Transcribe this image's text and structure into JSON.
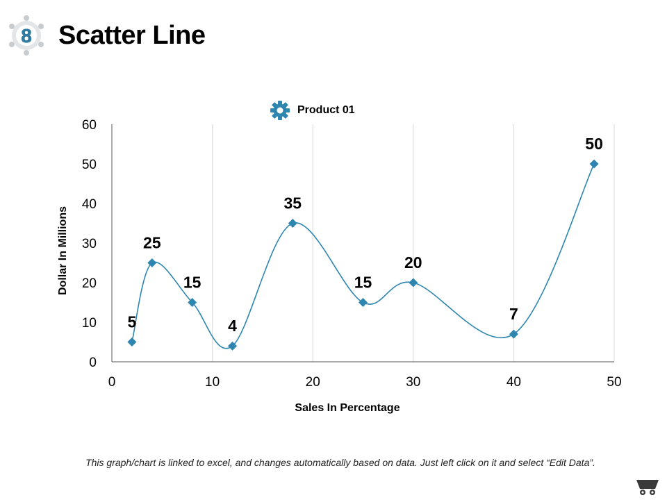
{
  "slide": {
    "number": "8",
    "title": "Scatter Line",
    "footnote": "This graph/chart is linked to excel, and changes automatically based on data. Just left click on it and select “Edit Data”."
  },
  "colors": {
    "series": "#2E86B0",
    "grid": "#D9D9D9",
    "axis": "#555555",
    "logo": "#2E7FA8",
    "logo_ring": "#C9CCCF"
  },
  "icons": {
    "logo": "gear-badge-icon",
    "legend": "gear-icon",
    "footer": "cart-icon"
  },
  "chart_data": {
    "type": "scatter",
    "smooth": true,
    "title": "",
    "xlabel": "Sales In Percentage",
    "ylabel": "Dollar In Millions",
    "xlim": [
      0,
      50
    ],
    "ylim": [
      0,
      60
    ],
    "xticks": [
      0,
      10,
      20,
      30,
      40,
      50
    ],
    "yticks": [
      0,
      10,
      20,
      30,
      40,
      50,
      60
    ],
    "grid": "vertical",
    "legend": "top-center",
    "series": [
      {
        "name": "Product 01",
        "marker": "diamond",
        "x": [
          2,
          4,
          8,
          12,
          18,
          25,
          30,
          40,
          48
        ],
        "y": [
          5,
          25,
          15,
          4,
          35,
          15,
          20,
          7,
          50
        ],
        "labels": [
          "5",
          "25",
          "15",
          "4",
          "35",
          "15",
          "20",
          "7",
          "50"
        ]
      }
    ]
  }
}
